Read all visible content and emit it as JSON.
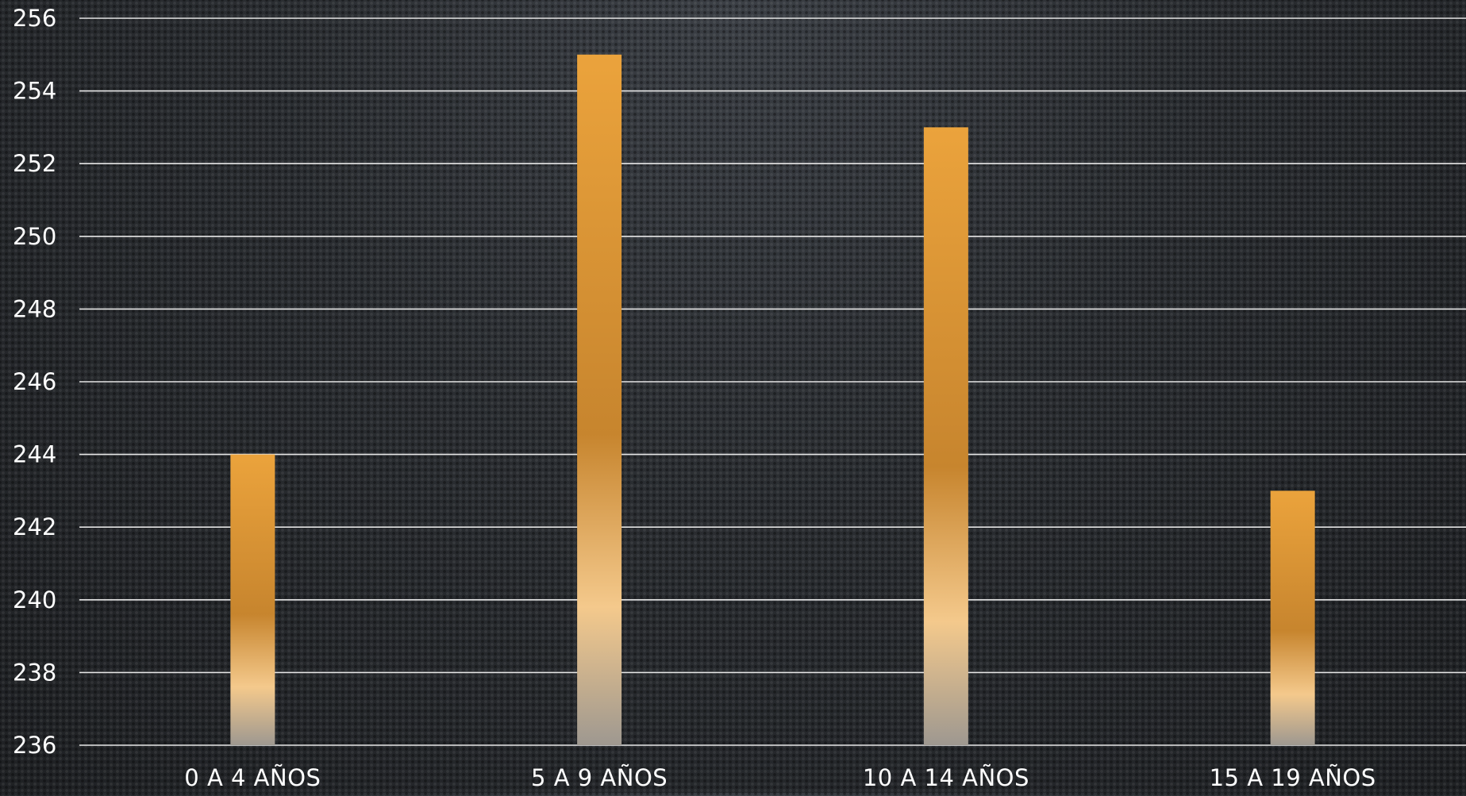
{
  "colors": {
    "bar_top": "#eba33c",
    "bar_mid": "#c7852e",
    "bar_light": "#f4c98c",
    "bar_fade": "#9e9890",
    "grid": "#e6e6e6",
    "text": "#ffffff"
  },
  "chart_data": {
    "type": "bar",
    "categories": [
      "0 A 4 AÑOS",
      "5 A 9 AÑOS",
      "10 A 14 AÑOS",
      "15 A 19 AÑOS"
    ],
    "values": [
      244,
      255,
      253,
      243
    ],
    "ylim": [
      236,
      256
    ],
    "yticks": [
      "236",
      "238",
      "240",
      "242",
      "244",
      "246",
      "248",
      "250",
      "252",
      "254",
      "256"
    ],
    "grid": true,
    "legend": "none"
  }
}
